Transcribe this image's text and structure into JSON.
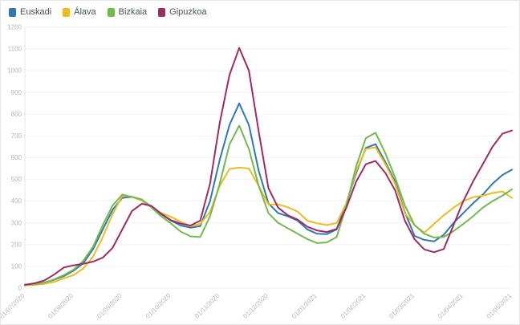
{
  "chart_data": {
    "type": "line",
    "title": "",
    "xlabel": "",
    "ylabel": "",
    "ylim": [
      0,
      1200
    ],
    "y_ticks": [
      0,
      100,
      200,
      300,
      400,
      500,
      600,
      700,
      800,
      900,
      1000,
      1100,
      1200
    ],
    "grid": "horizontal",
    "legend_position": "top-left",
    "x_tick_labels": [
      "01/07/2020",
      "01/08/2020",
      "01/09/2020",
      "01/10/2020",
      "01/11/2020",
      "01/12/2020",
      "01/01/2021",
      "01/02/2021",
      "01/03/2021",
      "01/04/2021",
      "01/05/2021"
    ],
    "x_months": [
      0,
      0.2,
      0.4,
      0.6,
      0.8,
      1,
      1.2,
      1.4,
      1.6,
      1.8,
      2,
      2.2,
      2.4,
      2.6,
      2.8,
      3,
      3.2,
      3.4,
      3.6,
      3.8,
      4,
      4.2,
      4.4,
      4.6,
      4.8,
      5,
      5.2,
      5.4,
      5.6,
      5.8,
      6,
      6.2,
      6.4,
      6.6,
      6.8,
      7,
      7.2,
      7.4,
      7.6,
      7.8,
      8,
      8.2,
      8.4,
      8.6,
      8.8,
      9,
      9.2,
      9.4,
      9.6,
      9.8,
      10
    ],
    "series": [
      {
        "name": "Euskadi",
        "color": "#2e79ad",
        "values": [
          15,
          18,
          25,
          38,
          55,
          80,
          115,
          180,
          270,
          360,
          415,
          420,
          405,
          375,
          340,
          310,
          288,
          278,
          285,
          400,
          590,
          750,
          850,
          750,
          540,
          390,
          345,
          330,
          310,
          270,
          250,
          248,
          270,
          390,
          530,
          645,
          662,
          580,
          490,
          350,
          240,
          222,
          215,
          245,
          300,
          345,
          390,
          430,
          480,
          520,
          545
        ]
      },
      {
        "name": "Álava",
        "color": "#eabc23",
        "values": [
          12,
          15,
          20,
          28,
          45,
          60,
          90,
          145,
          235,
          340,
          425,
          420,
          402,
          372,
          345,
          328,
          305,
          285,
          295,
          350,
          470,
          548,
          555,
          550,
          470,
          385,
          385,
          372,
          352,
          310,
          298,
          290,
          300,
          390,
          540,
          640,
          648,
          570,
          480,
          345,
          290,
          255,
          295,
          335,
          370,
          400,
          418,
          425,
          437,
          445,
          415
        ]
      },
      {
        "name": "Bizkaia",
        "color": "#74b94e",
        "values": [
          15,
          18,
          25,
          40,
          60,
          85,
          125,
          190,
          290,
          380,
          430,
          420,
          408,
          370,
          330,
          297,
          260,
          238,
          235,
          330,
          480,
          660,
          748,
          640,
          470,
          345,
          300,
          275,
          250,
          225,
          207,
          210,
          235,
          380,
          560,
          690,
          715,
          620,
          510,
          380,
          290,
          250,
          233,
          235,
          262,
          295,
          330,
          370,
          400,
          425,
          455
        ]
      },
      {
        "name": "Gipuzkoa",
        "color": "#9e2c64",
        "values": [
          15,
          22,
          35,
          62,
          95,
          105,
          112,
          122,
          140,
          185,
          270,
          355,
          388,
          378,
          342,
          312,
          297,
          288,
          310,
          480,
          760,
          980,
          1105,
          1000,
          720,
          460,
          370,
          335,
          315,
          282,
          265,
          258,
          272,
          370,
          490,
          570,
          585,
          530,
          450,
          310,
          225,
          178,
          165,
          180,
          290,
          400,
          490,
          570,
          650,
          710,
          725
        ]
      }
    ],
    "style": {
      "grid_color": "#f2f2f2",
      "axis_line_color": "#e6e6e6",
      "tick_label_color": "#b5b5b5",
      "background": "#ffffff",
      "line_width": 2
    }
  }
}
